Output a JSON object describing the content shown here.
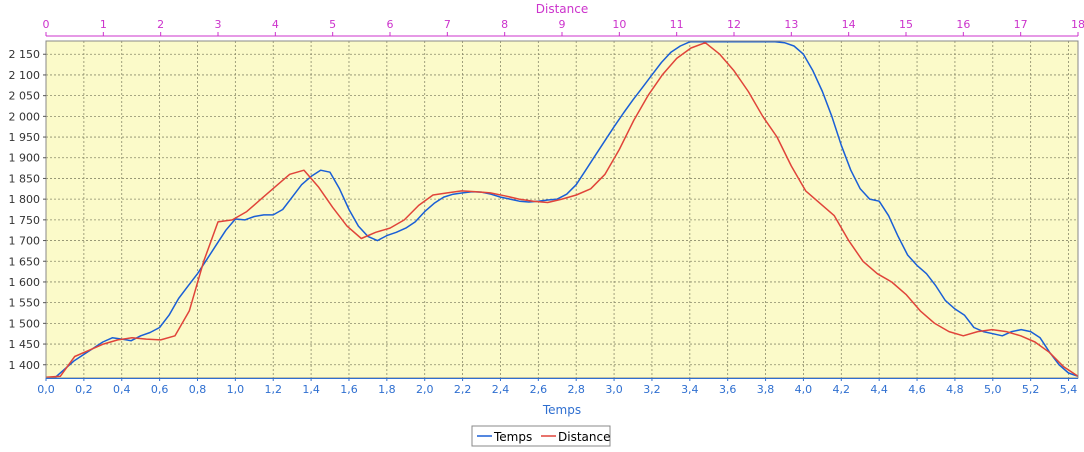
{
  "chart_data": {
    "type": "line",
    "colors": {
      "temps": "#1a5fd6",
      "distance": "#e0443a",
      "top_axis": "#cc33cc",
      "bottom_axis": "#2f6fd0",
      "plot_bg": "#fbfac9",
      "grid": "#8a8a6a"
    },
    "top_axis": {
      "label": "Distance",
      "range": [
        0,
        18
      ],
      "ticks": [
        "0",
        "1",
        "2",
        "3",
        "4",
        "5",
        "6",
        "7",
        "8",
        "9",
        "10",
        "11",
        "12",
        "13",
        "14",
        "15",
        "16",
        "17",
        "18"
      ]
    },
    "x_axis": {
      "label": "Temps",
      "range": [
        0,
        5.45
      ],
      "ticks": [
        "0,0",
        "0,2",
        "0,4",
        "0,6",
        "0,8",
        "1,0",
        "1,2",
        "1,4",
        "1,6",
        "1,8",
        "2,0",
        "2,2",
        "2,4",
        "2,6",
        "2,8",
        "3,0",
        "3,2",
        "3,4",
        "3,6",
        "3,8",
        "4,0",
        "4,2",
        "4,4",
        "4,6",
        "4,8",
        "5,0",
        "5,2",
        "5,4"
      ]
    },
    "y_axis": {
      "range": [
        1368,
        2182
      ],
      "ticks": [
        "1 400",
        "1 450",
        "1 500",
        "1 550",
        "1 600",
        "1 650",
        "1 700",
        "1 750",
        "1 800",
        "1 850",
        "1 900",
        "1 950",
        "2 000",
        "2 050",
        "2 100",
        "2 150"
      ]
    },
    "grid": true,
    "legend_position": "bottom-center",
    "series": [
      {
        "name": "Temps",
        "axis": "Temps",
        "x": [
          0.0,
          0.05,
          0.1,
          0.15,
          0.2,
          0.25,
          0.3,
          0.35,
          0.4,
          0.45,
          0.5,
          0.55,
          0.6,
          0.65,
          0.7,
          0.75,
          0.8,
          0.85,
          0.9,
          0.95,
          1.0,
          1.05,
          1.1,
          1.15,
          1.2,
          1.25,
          1.3,
          1.35,
          1.4,
          1.45,
          1.5,
          1.55,
          1.6,
          1.65,
          1.7,
          1.75,
          1.8,
          1.85,
          1.9,
          1.95,
          2.0,
          2.05,
          2.1,
          2.15,
          2.2,
          2.25,
          2.3,
          2.35,
          2.4,
          2.45,
          2.5,
          2.55,
          2.6,
          2.65,
          2.7,
          2.75,
          2.8,
          2.85,
          2.9,
          2.95,
          3.0,
          3.05,
          3.1,
          3.15,
          3.2,
          3.25,
          3.3,
          3.35,
          3.4,
          3.45,
          3.5,
          3.55,
          3.6,
          3.65,
          3.7,
          3.75,
          3.8,
          3.85,
          3.9,
          3.95,
          4.0,
          4.05,
          4.1,
          4.15,
          4.2,
          4.25,
          4.3,
          4.35,
          4.4,
          4.45,
          4.5,
          4.55,
          4.6,
          4.65,
          4.7,
          4.75,
          4.8,
          4.85,
          4.9,
          4.95,
          5.0,
          5.05,
          5.1,
          5.15,
          5.2,
          5.25,
          5.3,
          5.35,
          5.4,
          5.45
        ],
        "y": [
          1370,
          1370,
          1390,
          1410,
          1425,
          1440,
          1455,
          1465,
          1462,
          1458,
          1470,
          1478,
          1490,
          1520,
          1560,
          1590,
          1620,
          1655,
          1690,
          1725,
          1752,
          1750,
          1758,
          1762,
          1762,
          1775,
          1805,
          1835,
          1855,
          1870,
          1865,
          1825,
          1775,
          1735,
          1710,
          1700,
          1712,
          1720,
          1730,
          1745,
          1770,
          1790,
          1805,
          1812,
          1815,
          1818,
          1817,
          1812,
          1805,
          1800,
          1795,
          1793,
          1795,
          1798,
          1800,
          1812,
          1835,
          1870,
          1905,
          1940,
          1975,
          2008,
          2040,
          2070,
          2100,
          2130,
          2155,
          2170,
          2180,
          2180,
          2180,
          2180,
          2180,
          2180,
          2180,
          2180,
          2180,
          2180,
          2178,
          2170,
          2150,
          2110,
          2060,
          2000,
          1930,
          1870,
          1825,
          1800,
          1795,
          1760,
          1710,
          1665,
          1640,
          1620,
          1590,
          1555,
          1535,
          1520,
          1490,
          1480,
          1475,
          1470,
          1480,
          1485,
          1480,
          1465,
          1430,
          1400,
          1380,
          1372
        ]
      },
      {
        "name": "Distance",
        "axis": "Distance",
        "x": [
          0.0,
          0.25,
          0.5,
          0.75,
          1.0,
          1.25,
          1.5,
          1.75,
          2.0,
          2.25,
          2.5,
          2.75,
          3.0,
          3.25,
          3.5,
          3.75,
          4.0,
          4.25,
          4.5,
          4.75,
          5.0,
          5.25,
          5.5,
          5.75,
          6.0,
          6.25,
          6.5,
          6.75,
          7.0,
          7.25,
          7.5,
          7.75,
          8.0,
          8.25,
          8.5,
          8.75,
          9.0,
          9.25,
          9.5,
          9.75,
          10.0,
          10.25,
          10.5,
          10.75,
          11.0,
          11.25,
          11.5,
          11.75,
          12.0,
          12.25,
          12.5,
          12.75,
          13.0,
          13.25,
          13.5,
          13.75,
          14.0,
          14.25,
          14.5,
          14.75,
          15.0,
          15.25,
          15.5,
          15.75,
          16.0,
          16.25,
          16.5,
          16.75,
          17.0,
          17.25,
          17.5,
          17.75,
          18.0
        ],
        "y": [
          1370,
          1372,
          1420,
          1435,
          1450,
          1460,
          1465,
          1462,
          1460,
          1470,
          1530,
          1650,
          1745,
          1750,
          1770,
          1800,
          1830,
          1860,
          1870,
          1830,
          1780,
          1735,
          1705,
          1720,
          1730,
          1750,
          1785,
          1810,
          1815,
          1820,
          1818,
          1815,
          1808,
          1800,
          1795,
          1792,
          1800,
          1810,
          1825,
          1860,
          1920,
          1990,
          2050,
          2100,
          2140,
          2165,
          2178,
          2150,
          2110,
          2060,
          2000,
          1950,
          1880,
          1820,
          1790,
          1760,
          1700,
          1650,
          1620,
          1600,
          1570,
          1530,
          1500,
          1480,
          1470,
          1480,
          1485,
          1480,
          1470,
          1455,
          1430,
          1395,
          1372
        ]
      }
    ]
  }
}
